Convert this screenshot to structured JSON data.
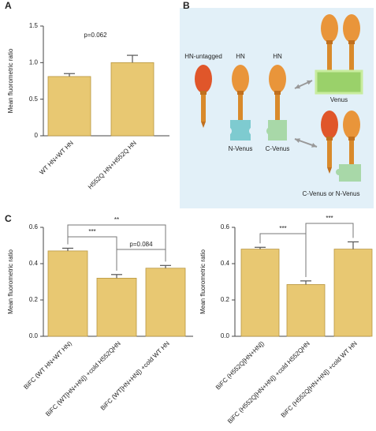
{
  "panels": [
    "A",
    "B",
    "C"
  ],
  "chart_data": [
    {
      "type": "bar",
      "y_label": "Mean fluorometric ratio",
      "categories": [
        "WT HN+WT HN",
        "H552Q HN+H552Q HN"
      ],
      "values": [
        0.81,
        1.0
      ],
      "errors": [
        0.04,
        0.1
      ],
      "ylim": [
        0,
        1.5
      ],
      "yticks": [
        0,
        0.5,
        {
          "value": 1,
          "label": "1.0"
        },
        1.5
      ],
      "color": "#e8c872",
      "annotations": [
        "p=0.062"
      ]
    },
    {
      "type": "bar",
      "y_label": "Mean fluorometric ratio",
      "categories": [
        "BiFC (WT HN+WT HN)",
        "BiFC (WT[HN+HN]) +cold H552QHN",
        "BiFC (WT[HN+HN]) +cold WT HN"
      ],
      "values": [
        0.47,
        0.32,
        0.375
      ],
      "errors": [
        0.015,
        0.02,
        0.015
      ],
      "ylim": [
        0,
        0.6
      ],
      "yticks": [
        {
          "value": 0,
          "label": "0.0"
        },
        0.2,
        0.4,
        0.6
      ],
      "color": "#e8c872",
      "annotations": [
        "***",
        "p=0.084",
        "**"
      ]
    },
    {
      "type": "bar",
      "y_label": "Mean fluorometric ratio",
      "categories": [
        "BiFC (H552Q[HN+HN])",
        "BiFC (H552Q[HN+HN]) +cold H552QHN",
        "BiFC (H552Q[HN+HN]) +cold WT HN"
      ],
      "values": [
        0.48,
        0.285,
        0.48
      ],
      "errors": [
        0.01,
        0.02,
        0.04
      ],
      "ylim": [
        0,
        0.6
      ],
      "yticks": [
        {
          "value": 0,
          "label": "0.0"
        },
        0.2,
        0.4,
        0.6
      ],
      "color": "#e8c872",
      "annotations": [
        "***",
        "***"
      ]
    }
  ],
  "diagram": {
    "labels": [
      "HN-untagged",
      "HN",
      "HN",
      "N-Venus",
      "C-Venus",
      "Venus",
      "C-Venus or N-Venus"
    ]
  }
}
